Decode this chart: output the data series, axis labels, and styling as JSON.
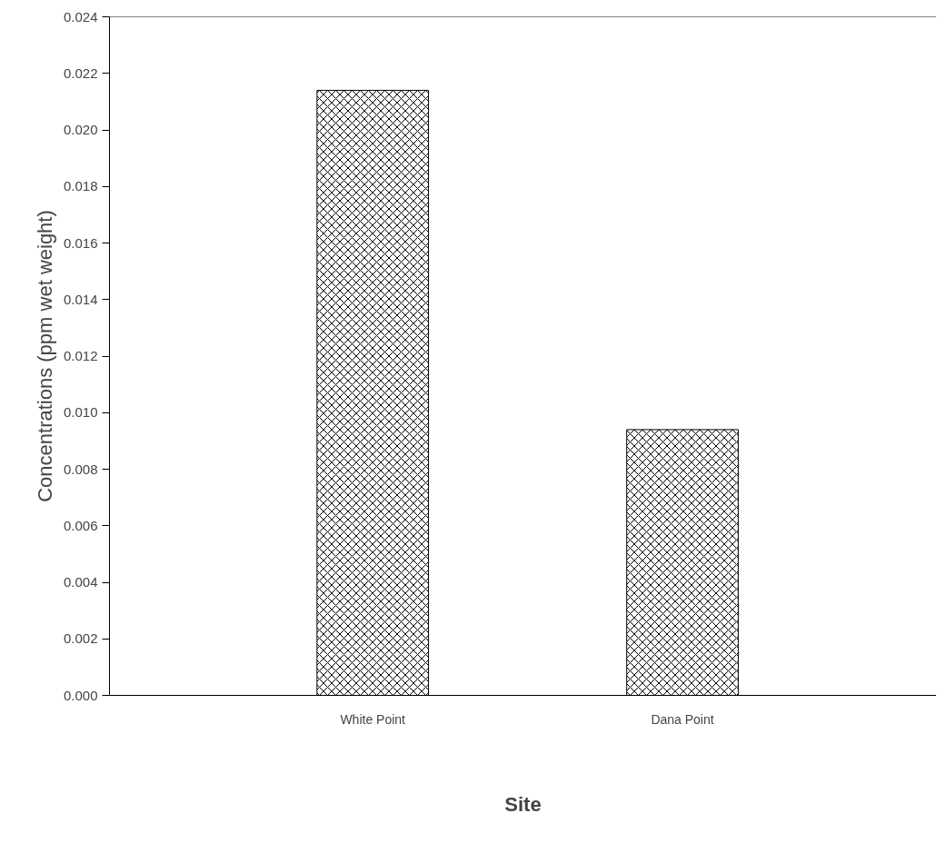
{
  "chart_data": {
    "type": "bar",
    "xlabel": "Site",
    "ylabel": "Concentrations (ppm wet weight)",
    "categories": [
      "White Point",
      "Dana Point"
    ],
    "values": [
      0.0214,
      0.0094
    ],
    "color": "#000000",
    "ylim": [
      0,
      0.024
    ],
    "yticks": [
      {
        "value": 0,
        "label": "0.000"
      },
      {
        "value": 0.002,
        "label": "0.002"
      },
      {
        "value": 0.004,
        "label": "0.004"
      },
      {
        "value": 0.006,
        "label": "0.006"
      },
      {
        "value": 0.008,
        "label": "0.008"
      },
      {
        "value": 0.01,
        "label": "0.010"
      },
      {
        "value": 0.012,
        "label": "0.012"
      },
      {
        "value": 0.014,
        "label": "0.014"
      },
      {
        "value": 0.016,
        "label": "0.016"
      },
      {
        "value": 0.018,
        "label": "0.018"
      },
      {
        "value": 0.02,
        "label": "0.020"
      },
      {
        "value": 0.022,
        "label": "0.022"
      },
      {
        "value": 0.024,
        "label": "0.024"
      }
    ],
    "grid": false
  }
}
